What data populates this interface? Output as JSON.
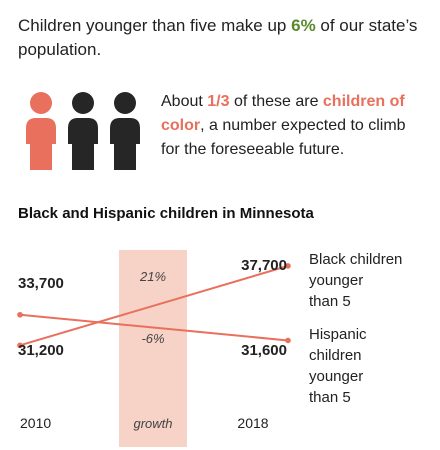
{
  "intro": {
    "before": "Children younger than five make up ",
    "highlight": "6%",
    "after": " of our state’s population."
  },
  "about": {
    "before": "About ",
    "fraction": "1/3",
    "middle": " of these are ",
    "highlight": "children of color",
    "after": ", a number expected to climb for the foreseeable future."
  },
  "colors": {
    "accent": "#e8705c",
    "dark": "#262626",
    "band": "#f7d2c7",
    "green": "#5a8a2e"
  },
  "figures": [
    {
      "icon": "person-icon",
      "highlighted": true
    },
    {
      "icon": "person-icon",
      "highlighted": false
    },
    {
      "icon": "person-icon",
      "highlighted": false
    }
  ],
  "chart_data": {
    "type": "line",
    "title": "Black and Hispanic children in Minnesota",
    "x": [
      "2010",
      "2018"
    ],
    "series": [
      {
        "name": "Black children younger than 5",
        "values": [
          31200,
          37700
        ],
        "growth": "21%"
      },
      {
        "name": "Hispanic children younger than 5",
        "values": [
          33700,
          31600
        ],
        "growth": "-6%"
      }
    ],
    "value_labels": {
      "start": [
        "33,700",
        "31,200"
      ],
      "end": [
        "37,700",
        "31,600"
      ]
    },
    "band_label": "growth",
    "legend_lines": [
      [
        "Black children",
        "younger",
        "than 5"
      ],
      [
        "Hispanic",
        "children",
        "younger",
        "than 5"
      ]
    ],
    "ylim": [
      30000,
      39000
    ],
    "grid": false
  }
}
